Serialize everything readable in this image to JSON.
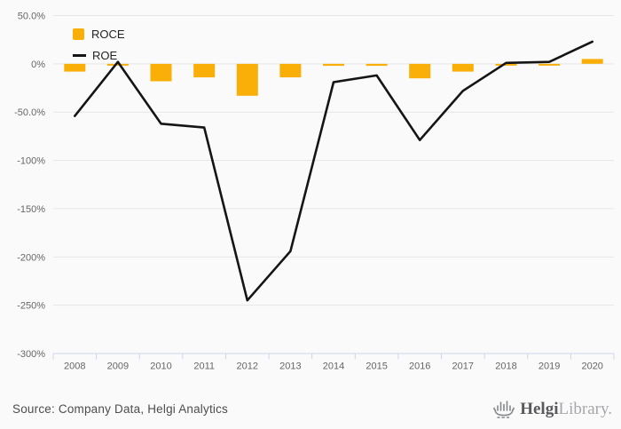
{
  "chart_data": {
    "type": "bar",
    "subtype": "bar-and-line-combo",
    "title": "",
    "xlabel": "",
    "ylabel": "",
    "categories": [
      "2008",
      "2009",
      "2010",
      "2011",
      "2012",
      "2013",
      "2014",
      "2015",
      "2016",
      "2017",
      "2018",
      "2019",
      "2020"
    ],
    "series": [
      {
        "name": "ROCE",
        "type": "bar",
        "color": "#f9ae08",
        "values": [
          -8,
          -1,
          -18,
          -14,
          -33,
          -14,
          -2,
          -2,
          -15,
          -8,
          -1,
          -1,
          5
        ]
      },
      {
        "name": "ROE",
        "type": "line",
        "color": "#151515",
        "values": [
          -54,
          2,
          -62,
          -66,
          -245,
          -194,
          -19,
          -12,
          -79,
          -28,
          1,
          2,
          23
        ]
      }
    ],
    "ylim": [
      -300,
      50
    ],
    "yticks": [
      {
        "value": 50,
        "label": "50.0%"
      },
      {
        "value": 0,
        "label": "0%"
      },
      {
        "value": -50,
        "label": "-50.0%"
      },
      {
        "value": -100,
        "label": "-100%"
      },
      {
        "value": -150,
        "label": "-150%"
      },
      {
        "value": -200,
        "label": "-200%"
      },
      {
        "value": -250,
        "label": "-250%"
      },
      {
        "value": -300,
        "label": "-300%"
      }
    ],
    "grid": true,
    "legend_position": "top-left"
  },
  "legend": {
    "items": [
      {
        "label": "ROCE",
        "swatch": "square"
      },
      {
        "label": "ROE",
        "swatch": "line"
      }
    ]
  },
  "footer": {
    "source": "Source: Company Data, Helgi Analytics",
    "logo": {
      "icon": "viking-ship-icon",
      "brand_primary": "Helgi",
      "brand_secondary": "Library."
    }
  },
  "colors": {
    "background": "#fafafa",
    "grid": "#e6e6e6",
    "axis": "#ccd6eb",
    "tick_label": "#666666",
    "bar": "#f9ae08",
    "line": "#151515",
    "source_text": "#4d4d4d",
    "logo_gray": "#85878a"
  }
}
